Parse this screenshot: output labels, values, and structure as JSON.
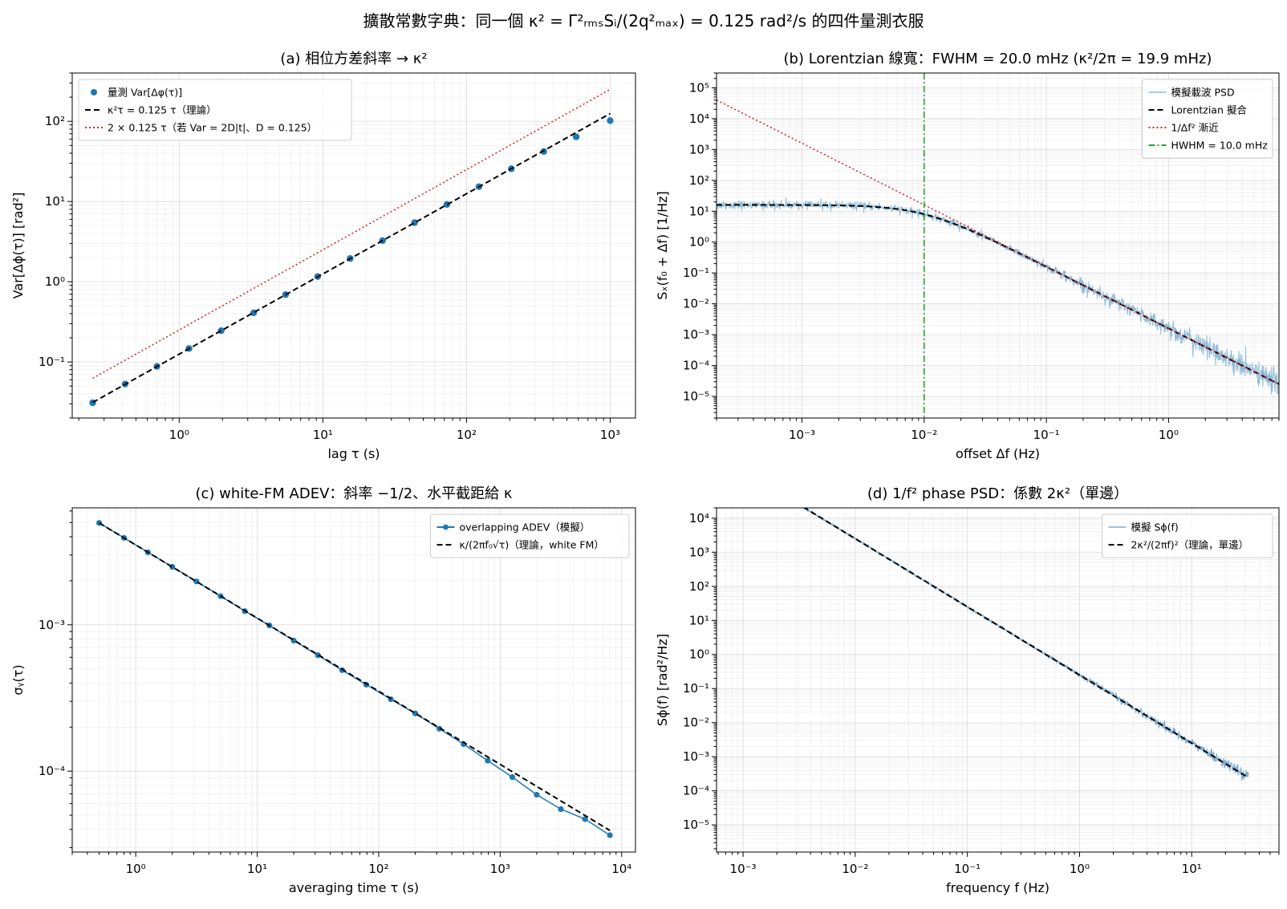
{
  "suptitle": "擴散常數字典：同一個 κ² = Γ²ᵣₘₛSᵢ/(2q²ₘₐₓ) = 0.125 rad²/s 的四件量測衣服",
  "chart_data": [
    {
      "id": "a",
      "type": "line",
      "title": "(a) 相位方差斜率 → κ²",
      "xlabel": "lag τ (s)",
      "ylabel": "Var[Δϕ(τ)]  [rad²]",
      "xscale": "log",
      "yscale": "log",
      "xlim": [
        0.18,
        1500
      ],
      "ylim": [
        0.02,
        400
      ],
      "grid": true,
      "legend_loc": "upper left",
      "series": [
        {
          "name": "量測 Var[Δφ(τ)]",
          "style": "scatter",
          "color": "#1f77b4",
          "x": [
            0.25,
            0.42,
            0.7,
            1.17,
            1.96,
            3.3,
            5.5,
            9.2,
            15.5,
            26,
            43.5,
            73,
            122,
            205,
            345,
            580,
            1000
          ],
          "y": [
            0.031,
            0.053,
            0.088,
            0.147,
            0.245,
            0.41,
            0.69,
            1.16,
            1.95,
            3.25,
            5.45,
            9.2,
            15.3,
            25.6,
            42,
            64,
            102
          ]
        },
        {
          "name": "κ²τ = 0.125 τ（理論）",
          "style": "dashed",
          "color": "#000000",
          "x": [
            0.25,
            1000
          ],
          "y": [
            0.03125,
            125
          ]
        },
        {
          "name": "2 × 0.125 τ（若 Var = 2D|t|、D = 0.125）",
          "style": "dotted",
          "color": "#d62728",
          "x": [
            0.25,
            1000
          ],
          "y": [
            0.0625,
            250
          ]
        }
      ]
    },
    {
      "id": "b",
      "type": "line",
      "title": "(b) Lorentzian 線寬：FWHM = 20.0 mHz (κ²/2π = 19.9 mHz)",
      "xlabel": "offset Δf (Hz)",
      "ylabel": "Sₓ(f₀ + Δf)  [1/Hz]",
      "xscale": "log",
      "yscale": "log",
      "xlim": [
        0.0002,
        8
      ],
      "ylim": [
        2e-06,
        300000
      ],
      "grid": true,
      "legend_loc": "upper right",
      "lorentz": {
        "amplitude": 16,
        "hwhm": 0.01
      },
      "series": [
        {
          "name": "模擬載波 PSD",
          "style": "noisy",
          "color": "#8fbbd9"
        },
        {
          "name": "Lorentzian 擬合",
          "style": "dashed",
          "color": "#000000"
        },
        {
          "name": "1/Δf² 漸近",
          "style": "dotted",
          "color": "#d62728"
        },
        {
          "name": "HWHM = 10.0 mHz",
          "style": "dashdot",
          "color": "#2ca02c",
          "x": 0.01
        }
      ]
    },
    {
      "id": "c",
      "type": "line",
      "title": "(c) white-FM ADEV：斜率 −1/2、水平截距給 κ",
      "xlabel": "averaging time τ (s)",
      "ylabel": "σᵧ(τ)",
      "xscale": "log",
      "yscale": "log",
      "xlim": [
        0.3,
        13000
      ],
      "ylim": [
        2.8e-05,
        0.0063
      ],
      "grid": true,
      "legend_loc": "upper right",
      "series": [
        {
          "name": "overlapping ADEV（模擬）",
          "style": "line-marker",
          "color": "#1f77b4",
          "x": [
            0.5,
            0.8,
            1.26,
            2,
            3.16,
            5,
            7.9,
            12.6,
            20,
            31.6,
            50,
            79,
            126,
            200,
            316,
            500,
            790,
            1260,
            2000,
            3160,
            5000,
            8000
          ],
          "y": [
            0.00497,
            0.00393,
            0.00313,
            0.00249,
            0.00198,
            0.00157,
            0.00124,
            0.00099,
            0.00078,
            0.00062,
            0.00049,
            0.00039,
            0.00031,
            0.000248,
            0.000195,
            0.000153,
            0.000118,
            9.1e-05,
            6.9e-05,
            5.5e-05,
            4.7e-05,
            3.65e-05
          ]
        },
        {
          "name": "κ/(2πf₀√τ)（理論，white FM）",
          "style": "dashed",
          "color": "#000000",
          "x": [
            0.5,
            8000
          ],
          "y": [
            0.00497,
            3.93e-05
          ]
        }
      ]
    },
    {
      "id": "d",
      "type": "line",
      "title": "(d) 1/f² phase PSD：係數 2κ²（單邊）",
      "xlabel": "frequency f (Hz)",
      "ylabel": "Sϕ(f)  [rad²/Hz]",
      "xscale": "log",
      "yscale": "log",
      "xlim": [
        0.00058,
        60
      ],
      "ylim": [
        1.6e-06,
        20000
      ],
      "grid": true,
      "legend_loc": "upper right",
      "series": [
        {
          "name": "模擬 Sϕ(f)",
          "style": "noisy",
          "color": "#7eaed3"
        },
        {
          "name": "2κ²/(2πf)²（理論，單邊）",
          "style": "dashed",
          "color": "#000000",
          "x": [
            0.001,
            32
          ],
          "coef": 0.25
        }
      ]
    }
  ]
}
